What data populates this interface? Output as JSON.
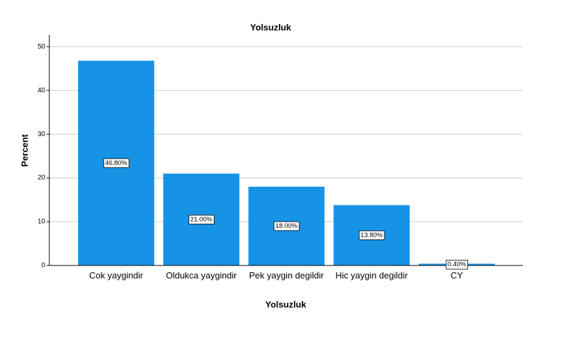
{
  "chart_data": {
    "type": "bar",
    "title": "Yolsuzluk",
    "x_label": "Yolsuzluk",
    "y_label": "Percent",
    "categories": [
      "Cok yaygindir",
      "Oldukca yaygindir",
      "Pek yaygin degildir",
      "Hic yaygin degildir",
      "CY"
    ],
    "values": [
      46.8,
      21.0,
      18.0,
      13.8,
      0.4
    ],
    "value_labels": [
      "46.80%",
      "21.00%",
      "18.00%",
      "13.80%",
      "0.40%"
    ],
    "color": "#1793e6",
    "ylim": [
      0,
      52.7
    ],
    "yticks": [
      0,
      10,
      20,
      30,
      40,
      50
    ],
    "grid": true
  }
}
